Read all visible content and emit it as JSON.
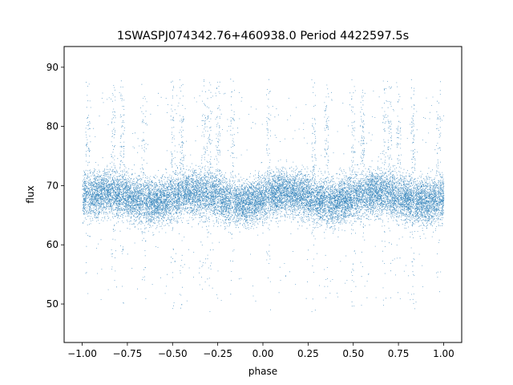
{
  "chart_data": {
    "type": "scatter",
    "title": "1SWASPJ074342.76+460938.0 Period 4422597.5s",
    "xlabel": "phase",
    "ylabel": "flux",
    "xlim": [
      -1.1,
      1.1
    ],
    "ylim": [
      43.5,
      93.5
    ],
    "x_ticks": [
      -1.0,
      -0.75,
      -0.5,
      -0.25,
      0.0,
      0.25,
      0.5,
      0.75,
      1.0
    ],
    "x_tick_labels": [
      "−1.00",
      "−0.75",
      "−0.50",
      "−0.25",
      "0.00",
      "0.25",
      "0.50",
      "0.75",
      "1.00"
    ],
    "y_ticks": [
      50,
      60,
      70,
      80,
      90
    ],
    "y_tick_labels": [
      "50",
      "60",
      "70",
      "80",
      "90"
    ],
    "grid": false,
    "legend": "none",
    "series": [
      {
        "color": "#1f77b4",
        "baseline_flux": 68,
        "typical_flux_range": [
          62,
          73
        ],
        "approx_point_count": 20000,
        "phase_range": [
          -1.0,
          1.0
        ],
        "flare_phases": [
          -0.97,
          -0.83,
          -0.78,
          -0.66,
          -0.5,
          -0.45,
          -0.33,
          -0.3,
          -0.25,
          -0.17,
          0.03,
          0.28,
          0.35,
          0.5,
          0.55,
          0.67,
          0.7,
          0.75,
          0.83,
          0.97
        ],
        "dips_to_flux_near": 46,
        "flares_to_flux_near": 90
      }
    ]
  }
}
